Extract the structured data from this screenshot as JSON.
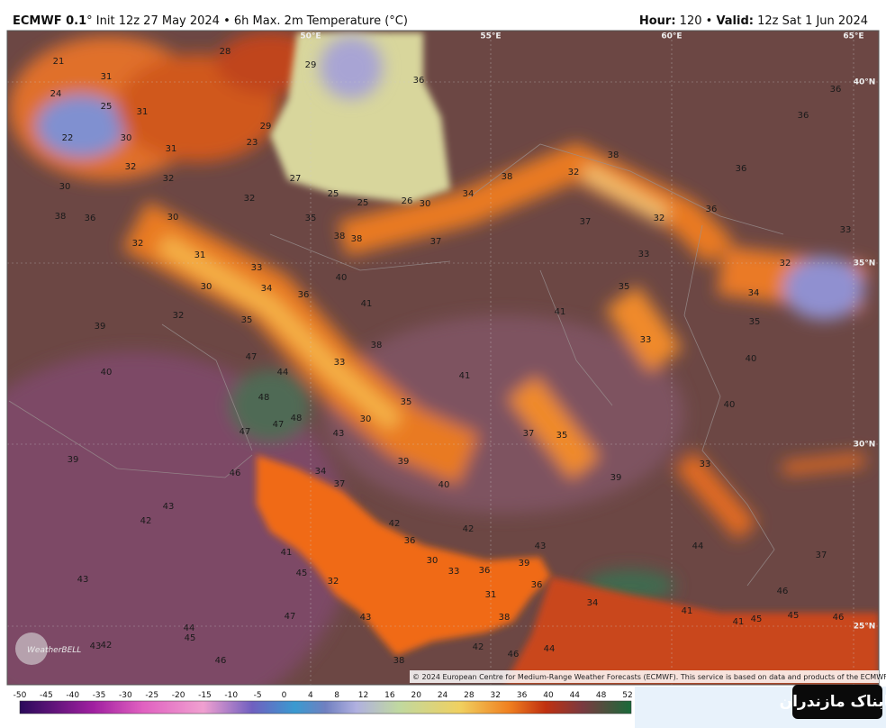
{
  "header": {
    "model": "ECMWF 0.1",
    "title": "° Init 12z 27 May 2024 • 6h Max. 2m Temperature (°C)",
    "hour_label": "Hour:",
    "hour": " 120 • ",
    "valid_label": "Valid:",
    "valid": " 12z Sat 1 Jun 2024"
  },
  "map": {
    "lon_labels": [
      "50°E",
      "55°E",
      "60°E",
      "65°E"
    ],
    "lat_labels": [
      "40°N",
      "35°N",
      "30°N",
      "25°N"
    ],
    "labels": [
      21,
      24,
      25,
      22,
      31,
      28,
      29,
      36,
      31,
      29,
      23,
      30,
      31,
      32,
      32,
      27,
      25,
      25,
      26,
      30,
      34,
      38,
      32,
      38,
      36,
      36,
      36,
      30,
      38,
      36,
      30,
      32,
      35,
      38,
      38,
      37,
      37,
      32,
      36,
      33,
      32,
      31,
      33,
      40,
      33,
      32,
      30,
      34,
      36,
      41,
      35,
      34,
      32,
      35,
      41,
      35,
      39,
      38,
      33,
      47,
      33,
      40,
      40,
      44,
      41,
      48,
      35,
      40,
      47,
      48,
      30,
      47,
      43,
      37,
      35,
      39,
      39,
      33,
      46,
      34,
      37,
      40,
      39,
      43,
      42,
      42,
      42,
      36,
      43,
      44,
      37,
      41,
      30,
      33,
      36,
      39,
      45,
      32,
      36,
      43,
      31,
      34,
      46,
      47,
      43,
      38,
      41,
      41,
      45,
      45,
      46,
      44,
      45,
      43,
      42,
      42,
      46,
      44,
      46,
      38
    ],
    "copyright": "© 2024 European Centre for Medium-Range Weather Forecasts (ECMWF). This service is based on data and products of the ECMWF",
    "logo": "WeatherBELL",
    "watermark": "تابناک مازندران"
  },
  "colorbar": {
    "ticks": [
      -50,
      -45,
      -40,
      -35,
      -30,
      -25,
      -20,
      -15,
      -10,
      -5,
      0,
      4,
      8,
      12,
      16,
      20,
      24,
      28,
      32,
      36,
      40,
      44,
      48,
      52
    ]
  }
}
